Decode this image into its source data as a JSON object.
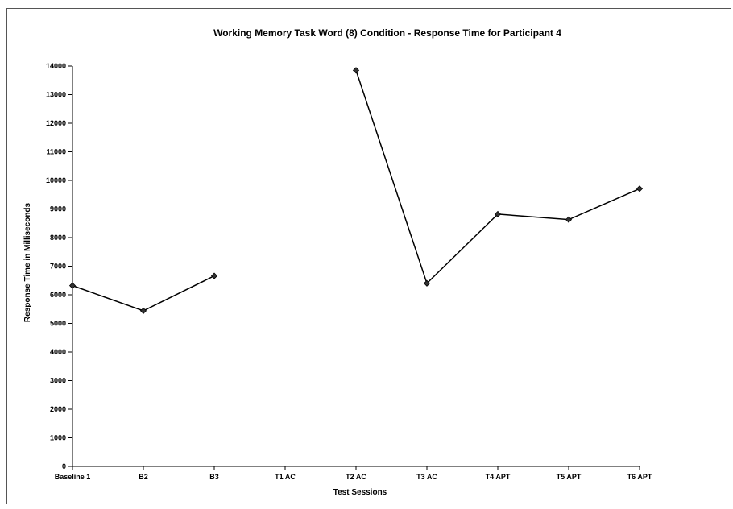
{
  "chart_data": {
    "type": "line",
    "title": "Working Memory Task Word (8) Condition - Response Time for Participant 4",
    "xlabel": "Test Sessions",
    "ylabel": "Response Time in Milliseconds",
    "categories": [
      "Baseline 1",
      "B2",
      "B3",
      "T1 AC",
      "T2 AC",
      "T3 AC",
      "T4 APT",
      "T5 APT",
      "T6 APT"
    ],
    "series": [
      {
        "values": [
          6320,
          5440,
          6660,
          null,
          13850,
          6400,
          8820,
          8630,
          9710
        ],
        "color": "#000000"
      }
    ],
    "ylim": [
      0,
      14000
    ],
    "yticks": [
      0,
      1000,
      2000,
      3000,
      4000,
      5000,
      6000,
      7000,
      8000,
      9000,
      10000,
      11000,
      12000,
      13000,
      14000
    ],
    "grid": false
  }
}
